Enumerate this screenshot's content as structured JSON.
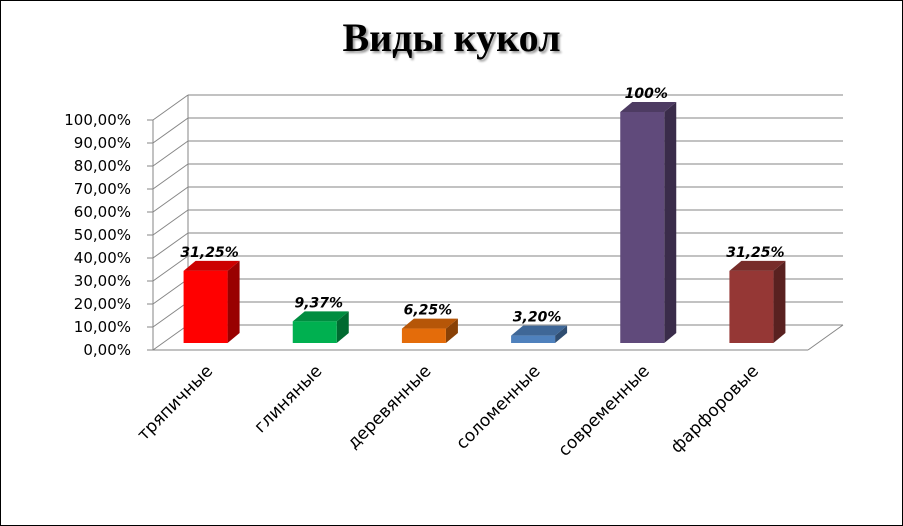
{
  "chart_data": {
    "type": "bar",
    "title": "Виды кукол",
    "categories": [
      "тряпичные",
      "глиняные",
      "деревянные",
      "соломенные",
      "современные",
      "фарфоровые"
    ],
    "values": [
      31.25,
      9.37,
      6.25,
      3.2,
      100,
      31.25
    ],
    "data_labels": [
      "31,25%",
      "9,37%",
      "6,25%",
      "3,20%",
      "100%",
      "31,25%"
    ],
    "colors": [
      "#ff0000",
      "#00b050",
      "#e46c0a",
      "#4f81bd",
      "#604a7b",
      "#953735"
    ],
    "ylim": [
      0,
      100
    ],
    "y_ticks": [
      "0,00%",
      "10,00%",
      "20,00%",
      "30,00%",
      "40,00%",
      "50,00%",
      "60,00%",
      "70,00%",
      "80,00%",
      "90,00%",
      "100,00%"
    ],
    "xlabel": "",
    "ylabel": "",
    "grid": true,
    "style": "3d"
  }
}
